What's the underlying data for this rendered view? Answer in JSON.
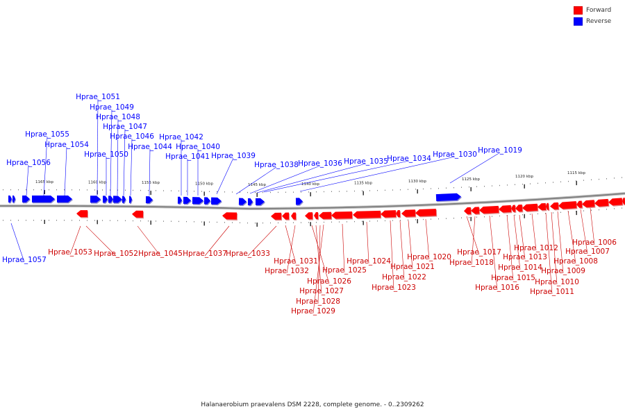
{
  "legend": {
    "forward": {
      "label": "Forward",
      "color": "#ff0000"
    },
    "reverse": {
      "label": "Reverse",
      "color": "#0000ff"
    }
  },
  "caption": "Halanaerobium praevalens DSM 2228, complete genome. - 0..2309262",
  "ticks": [
    "1165 kbp",
    "1160 kbp",
    "1155 kbp",
    "1150 kbp",
    "1145 kbp",
    "1140 kbp",
    "1135 kbp",
    "1130 kbp",
    "1125 kbp",
    "1120 kbp",
    "1115 kbp"
  ],
  "genes_reverse": [
    "Hprae_1057",
    "Hprae_1056",
    "Hprae_1055",
    "Hprae_1054",
    "Hprae_1051",
    "Hprae_1050",
    "Hprae_1049",
    "Hprae_1048",
    "Hprae_1047",
    "Hprae_1046",
    "Hprae_1044",
    "Hprae_1042",
    "Hprae_1041",
    "Hprae_1040",
    "Hprae_1039",
    "Hprae_1038",
    "Hprae_1036",
    "Hprae_1035",
    "Hprae_1034",
    "Hprae_1030",
    "Hprae_1019"
  ],
  "genes_forward": [
    "Hprae_1053",
    "Hprae_1052",
    "Hprae_1045",
    "Hprae_1037",
    "Hprae_1033",
    "Hprae_1031",
    "Hprae_1032",
    "Hprae_1026",
    "Hprae_1027",
    "Hprae_1028",
    "Hprae_1029",
    "Hprae_1025",
    "Hprae_1024",
    "Hprae_1021",
    "Hprae_1022",
    "Hprae_1023",
    "Hprae_1020",
    "Hprae_1017",
    "Hprae_1018",
    "Hprae_1016",
    "Hprae_1015",
    "Hprae_1014",
    "Hprae_1013",
    "Hprae_1012",
    "Hprae_1011",
    "Hprae_1010",
    "Hprae_1009",
    "Hprae_1008",
    "Hprae_1007",
    "Hprae_1006"
  ]
}
